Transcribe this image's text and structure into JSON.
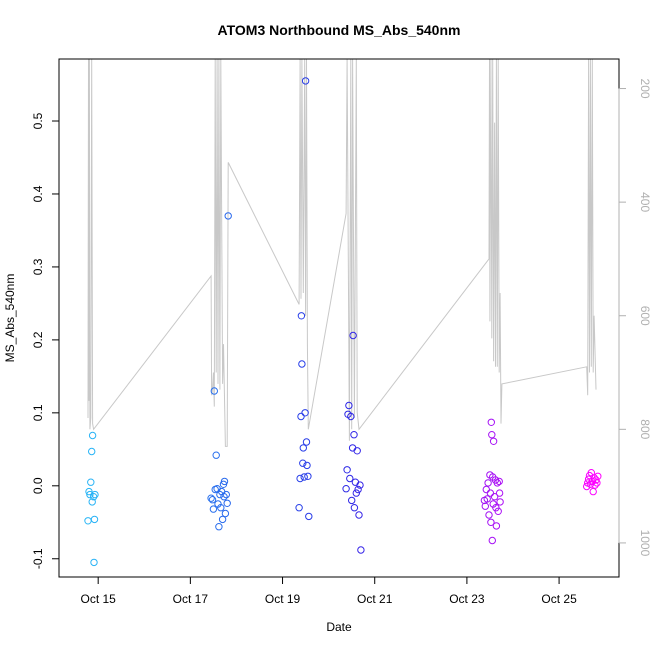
{
  "chart_data": {
    "type": "scatter",
    "title": "ATOM3 Northbound MS_Abs_540nm",
    "xlabel": "Date",
    "ylabel": "MS_Abs_540nm",
    "x_unit": "date (day of October 2016)",
    "xlim": [
      14.15,
      26.3
    ],
    "ylim": [
      -0.125,
      0.585
    ],
    "y2lim": [
      1060,
      148
    ],
    "x_ticks": [
      {
        "value": 15,
        "label": "Oct 15"
      },
      {
        "value": 17,
        "label": "Oct 17"
      },
      {
        "value": 19,
        "label": "Oct 19"
      },
      {
        "value": 21,
        "label": "Oct 21"
      },
      {
        "value": 23,
        "label": "Oct 23"
      },
      {
        "value": 25,
        "label": "Oct 25"
      }
    ],
    "y_ticks": [
      {
        "value": -0.1,
        "label": "-0.1"
      },
      {
        "value": 0.0,
        "label": "0.0"
      },
      {
        "value": 0.1,
        "label": "0.1"
      },
      {
        "value": 0.2,
        "label": "0.2"
      },
      {
        "value": 0.3,
        "label": "0.3"
      },
      {
        "value": 0.4,
        "label": "0.4"
      },
      {
        "value": 0.5,
        "label": "0.5"
      }
    ],
    "y2_ticks": [
      {
        "value": 200,
        "label": "200"
      },
      {
        "value": 400,
        "label": "400"
      },
      {
        "value": 600,
        "label": "600"
      },
      {
        "value": 800,
        "label": "800"
      },
      {
        "value": 1000,
        "label": "1000"
      }
    ],
    "grid": false,
    "legend": "none",
    "series": [
      {
        "role": "points",
        "marker": "open-circle",
        "color_gradient": [
          "#29b6f6",
          "#ff00ff"
        ],
        "points": [
          {
            "x": 14.78,
            "y": -0.048
          },
          {
            "x": 14.8,
            "y": -0.008
          },
          {
            "x": 14.82,
            "y": -0.012
          },
          {
            "x": 14.84,
            "y": 0.005
          },
          {
            "x": 14.86,
            "y": 0.047
          },
          {
            "x": 14.87,
            "y": -0.022
          },
          {
            "x": 14.88,
            "y": 0.069
          },
          {
            "x": 14.9,
            "y": -0.015
          },
          {
            "x": 14.91,
            "y": -0.105
          },
          {
            "x": 14.92,
            "y": -0.046
          },
          {
            "x": 14.93,
            "y": -0.012
          },
          {
            "x": 17.45,
            "y": -0.017
          },
          {
            "x": 17.48,
            "y": -0.019
          },
          {
            "x": 17.5,
            "y": -0.032
          },
          {
            "x": 17.52,
            "y": 0.13
          },
          {
            "x": 17.54,
            "y": -0.005
          },
          {
            "x": 17.56,
            "y": 0.042
          },
          {
            "x": 17.58,
            "y": -0.004
          },
          {
            "x": 17.6,
            "y": -0.025
          },
          {
            "x": 17.62,
            "y": -0.056
          },
          {
            "x": 17.64,
            "y": -0.012
          },
          {
            "x": 17.66,
            "y": -0.03
          },
          {
            "x": 17.68,
            "y": -0.008
          },
          {
            "x": 17.7,
            "y": -0.046
          },
          {
            "x": 17.72,
            "y": 0.002
          },
          {
            "x": 17.73,
            "y": -0.015
          },
          {
            "x": 17.74,
            "y": 0.006
          },
          {
            "x": 17.76,
            "y": -0.038
          },
          {
            "x": 17.78,
            "y": -0.012
          },
          {
            "x": 17.8,
            "y": -0.024
          },
          {
            "x": 17.82,
            "y": 0.37
          },
          {
            "x": 19.36,
            "y": -0.03
          },
          {
            "x": 19.38,
            "y": 0.01
          },
          {
            "x": 19.4,
            "y": 0.095
          },
          {
            "x": 19.41,
            "y": 0.233
          },
          {
            "x": 19.42,
            "y": 0.167
          },
          {
            "x": 19.44,
            "y": 0.031
          },
          {
            "x": 19.45,
            "y": 0.052
          },
          {
            "x": 19.47,
            "y": 0.012
          },
          {
            "x": 19.49,
            "y": 0.1
          },
          {
            "x": 19.5,
            "y": 0.555
          },
          {
            "x": 19.52,
            "y": 0.06
          },
          {
            "x": 19.53,
            "y": 0.028
          },
          {
            "x": 19.55,
            "y": 0.013
          },
          {
            "x": 19.57,
            "y": -0.042
          },
          {
            "x": 20.38,
            "y": -0.004
          },
          {
            "x": 20.4,
            "y": 0.022
          },
          {
            "x": 20.42,
            "y": 0.098
          },
          {
            "x": 20.44,
            "y": 0.11
          },
          {
            "x": 20.46,
            "y": 0.01
          },
          {
            "x": 20.48,
            "y": 0.095
          },
          {
            "x": 20.5,
            "y": -0.02
          },
          {
            "x": 20.52,
            "y": 0.052
          },
          {
            "x": 20.53,
            "y": 0.206
          },
          {
            "x": 20.55,
            "y": 0.07
          },
          {
            "x": 20.56,
            "y": -0.03
          },
          {
            "x": 20.58,
            "y": 0.005
          },
          {
            "x": 20.6,
            "y": -0.01
          },
          {
            "x": 20.62,
            "y": 0.048
          },
          {
            "x": 20.64,
            "y": -0.005
          },
          {
            "x": 20.66,
            "y": -0.04
          },
          {
            "x": 20.68,
            "y": 0.001
          },
          {
            "x": 20.7,
            "y": -0.088
          },
          {
            "x": 23.38,
            "y": -0.02
          },
          {
            "x": 23.4,
            "y": -0.028
          },
          {
            "x": 23.42,
            "y": -0.005
          },
          {
            "x": 23.44,
            "y": -0.018
          },
          {
            "x": 23.46,
            "y": 0.004
          },
          {
            "x": 23.48,
            "y": -0.04
          },
          {
            "x": 23.5,
            "y": 0.015
          },
          {
            "x": 23.51,
            "y": -0.01
          },
          {
            "x": 23.52,
            "y": -0.05
          },
          {
            "x": 23.53,
            "y": 0.087
          },
          {
            "x": 23.54,
            "y": 0.07
          },
          {
            "x": 23.55,
            "y": -0.075
          },
          {
            "x": 23.56,
            "y": 0.012
          },
          {
            "x": 23.57,
            "y": -0.025
          },
          {
            "x": 23.58,
            "y": 0.061
          },
          {
            "x": 23.6,
            "y": -0.015
          },
          {
            "x": 23.62,
            "y": 0.008
          },
          {
            "x": 23.63,
            "y": -0.03
          },
          {
            "x": 23.64,
            "y": -0.055
          },
          {
            "x": 23.66,
            "y": 0.004
          },
          {
            "x": 23.68,
            "y": -0.035
          },
          {
            "x": 23.7,
            "y": 0.006
          },
          {
            "x": 23.71,
            "y": -0.01
          },
          {
            "x": 23.72,
            "y": -0.022
          },
          {
            "x": 25.6,
            "y": -0.001
          },
          {
            "x": 25.62,
            "y": 0.004
          },
          {
            "x": 25.64,
            "y": 0.009
          },
          {
            "x": 25.66,
            "y": 0.014
          },
          {
            "x": 25.68,
            "y": 0.002
          },
          {
            "x": 25.7,
            "y": 0.018
          },
          {
            "x": 25.72,
            "y": 0.006
          },
          {
            "x": 25.74,
            "y": -0.008
          },
          {
            "x": 25.76,
            "y": 0.011
          },
          {
            "x": 25.78,
            "y": 0.001
          },
          {
            "x": 25.8,
            "y": 0.008
          },
          {
            "x": 25.82,
            "y": 0.004
          },
          {
            "x": 25.84,
            "y": 0.013
          }
        ]
      },
      {
        "role": "line-right-axis",
        "color": "#c8c8c8",
        "points": [
          {
            "x": 14.78,
            "y2": 780
          },
          {
            "x": 14.79,
            "y2": 140
          },
          {
            "x": 14.8,
            "y2": 750
          },
          {
            "x": 14.81,
            "y2": 140
          },
          {
            "x": 14.82,
            "y2": 800
          },
          {
            "x": 14.84,
            "y2": 780
          },
          {
            "x": 14.86,
            "y2": 140
          },
          {
            "x": 14.88,
            "y2": 790
          },
          {
            "x": 14.9,
            "y2": 800
          },
          {
            "x": 17.45,
            "y2": 530
          },
          {
            "x": 17.46,
            "y2": 740
          },
          {
            "x": 17.48,
            "y2": 730
          },
          {
            "x": 17.5,
            "y2": 700
          },
          {
            "x": 17.52,
            "y2": 760
          },
          {
            "x": 17.54,
            "y2": 140
          },
          {
            "x": 17.56,
            "y2": 700
          },
          {
            "x": 17.58,
            "y2": 140
          },
          {
            "x": 17.6,
            "y2": 720
          },
          {
            "x": 17.62,
            "y2": 140
          },
          {
            "x": 17.64,
            "y2": 730
          },
          {
            "x": 17.66,
            "y2": 140
          },
          {
            "x": 17.7,
            "y2": 720
          },
          {
            "x": 17.72,
            "y2": 650
          },
          {
            "x": 17.76,
            "y2": 830
          },
          {
            "x": 17.8,
            "y2": 830
          },
          {
            "x": 17.82,
            "y2": 330
          },
          {
            "x": 19.36,
            "y2": 580
          },
          {
            "x": 19.38,
            "y2": 140
          },
          {
            "x": 19.4,
            "y2": 570
          },
          {
            "x": 19.42,
            "y2": 140
          },
          {
            "x": 19.45,
            "y2": 560
          },
          {
            "x": 19.48,
            "y2": 140
          },
          {
            "x": 19.5,
            "y2": 600
          },
          {
            "x": 19.52,
            "y2": 140
          },
          {
            "x": 19.54,
            "y2": 650
          },
          {
            "x": 19.56,
            "y2": 800
          },
          {
            "x": 20.38,
            "y2": 420
          },
          {
            "x": 20.4,
            "y2": 140
          },
          {
            "x": 20.45,
            "y2": 820
          },
          {
            "x": 20.48,
            "y2": 140
          },
          {
            "x": 20.5,
            "y2": 800
          },
          {
            "x": 20.52,
            "y2": 140
          },
          {
            "x": 20.56,
            "y2": 780
          },
          {
            "x": 20.6,
            "y2": 140
          },
          {
            "x": 20.62,
            "y2": 770
          },
          {
            "x": 20.66,
            "y2": 800
          },
          {
            "x": 23.48,
            "y2": 500
          },
          {
            "x": 23.49,
            "y2": 140
          },
          {
            "x": 23.5,
            "y2": 610
          },
          {
            "x": 23.52,
            "y2": 140
          },
          {
            "x": 23.54,
            "y2": 640
          },
          {
            "x": 23.56,
            "y2": 140
          },
          {
            "x": 23.58,
            "y2": 680
          },
          {
            "x": 23.6,
            "y2": 260
          },
          {
            "x": 23.62,
            "y2": 690
          },
          {
            "x": 23.64,
            "y2": 140
          },
          {
            "x": 23.66,
            "y2": 690
          },
          {
            "x": 23.68,
            "y2": 140
          },
          {
            "x": 23.7,
            "y2": 700
          },
          {
            "x": 23.72,
            "y2": 560
          },
          {
            "x": 23.74,
            "y2": 790
          },
          {
            "x": 23.76,
            "y2": 720
          },
          {
            "x": 25.6,
            "y2": 690
          },
          {
            "x": 25.62,
            "y2": 740
          },
          {
            "x": 25.64,
            "y2": 140
          },
          {
            "x": 25.66,
            "y2": 700
          },
          {
            "x": 25.68,
            "y2": 140
          },
          {
            "x": 25.7,
            "y2": 690
          },
          {
            "x": 25.72,
            "y2": 140
          },
          {
            "x": 25.74,
            "y2": 700
          },
          {
            "x": 25.76,
            "y2": 600
          },
          {
            "x": 25.8,
            "y2": 730
          }
        ]
      }
    ]
  }
}
